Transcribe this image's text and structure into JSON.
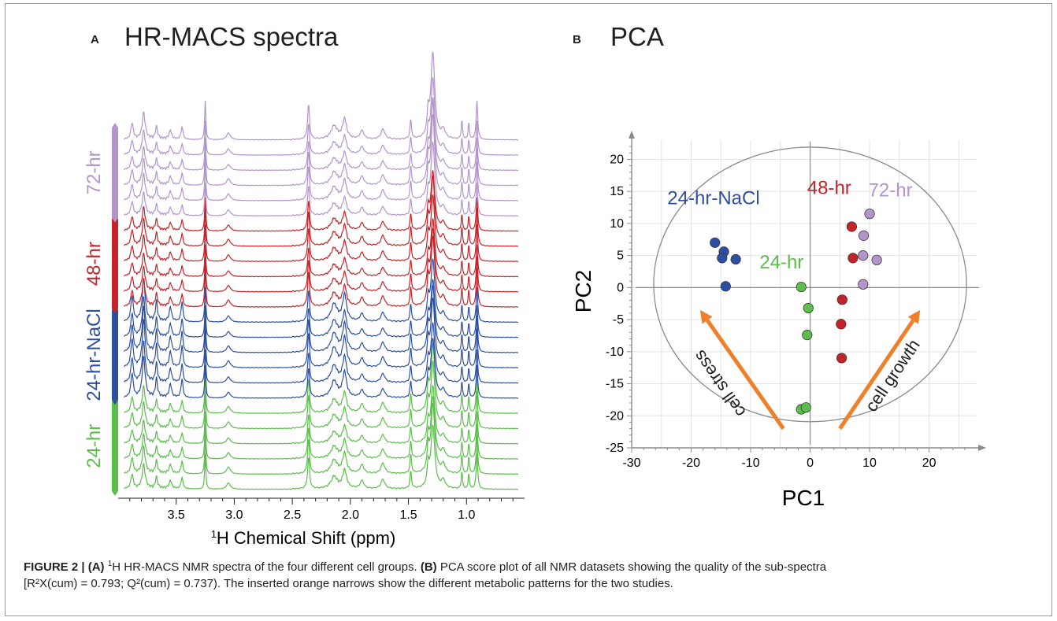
{
  "panel_a": {
    "letter": "A",
    "title": "HR-MACS spectra"
  },
  "panel_b": {
    "letter": "B",
    "title": "PCA"
  },
  "caption": {
    "fig_label": "FIGURE 2 |",
    "part_a_label": "(A)",
    "part_a_sup": "1",
    "part_a_text": "H HR-MACS NMR spectra of the four different cell groups.",
    "part_b_label": "(B)",
    "part_b_text": "PCA score plot of all NMR datasets showing the quality of the sub-spectra",
    "line2": "[R²X(cum) = 0.793; Q²(cum) = 0.737). The inserted orange narrows show the different metabolic patterns for the two studies."
  },
  "chart_data": [
    {
      "type": "line",
      "title": "HR-MACS spectra",
      "xlabel_sup": "1",
      "xlabel": "H Chemical Shift (ppm)",
      "x_ticks": [
        "3.5",
        "3.0",
        "2.5",
        "2.0",
        "1.5",
        "1.0"
      ],
      "xlim": [
        4.0,
        0.5
      ],
      "peaks_ppm": [
        3.88,
        3.78,
        3.67,
        3.55,
        3.45,
        3.25,
        3.05,
        2.36,
        2.14,
        2.05,
        1.9,
        1.72,
        1.48,
        1.33,
        1.29,
        1.2,
        1.04,
        0.98,
        0.91
      ],
      "groups": [
        {
          "name": "24-hr",
          "color": "#5cbd4c",
          "n_spectra": 6
        },
        {
          "name": "24-hr-NaCl",
          "color": "#2d4fa0",
          "n_spectra": 6
        },
        {
          "name": "48-hr",
          "color": "#c42329",
          "n_spectra": 6
        },
        {
          "name": "72-hr",
          "color": "#b395c9",
          "n_spectra": 6
        }
      ]
    },
    {
      "type": "scatter",
      "title": "PCA",
      "xlabel": "PC1",
      "ylabel": "PC2",
      "xlim": [
        -30,
        28
      ],
      "ylim": [
        -25,
        23
      ],
      "x_ticks": [
        -30,
        -20,
        -10,
        0,
        10,
        20
      ],
      "y_ticks": [
        20,
        15,
        10,
        5,
        0,
        -5,
        -10,
        -15,
        -20,
        -25
      ],
      "grid": true,
      "series": [
        {
          "name": "24-hr-NaCl",
          "color": "#2d4fa0",
          "points": [
            [
              -16,
              7
            ],
            [
              -14.5,
              5.6
            ],
            [
              -14.8,
              4.6
            ],
            [
              -12.5,
              4.4
            ],
            [
              -14.2,
              0.2
            ]
          ]
        },
        {
          "name": "24-hr",
          "color": "#5cbd4c",
          "points": [
            [
              -1.5,
              0.1
            ],
            [
              -0.3,
              -3.2
            ],
            [
              -0.5,
              -7.4
            ],
            [
              -1.5,
              -19.0
            ],
            [
              -0.7,
              -18.7
            ]
          ]
        },
        {
          "name": "48-hr",
          "color": "#c42329",
          "points": [
            [
              7,
              9.5
            ],
            [
              7.2,
              4.6
            ],
            [
              5.4,
              -1.9
            ],
            [
              5.2,
              -5.7
            ],
            [
              5.3,
              -11.0
            ]
          ]
        },
        {
          "name": "72-hr",
          "color": "#b395c9",
          "points": [
            [
              10,
              11.5
            ],
            [
              9,
              8.1
            ],
            [
              8.9,
              5.0
            ],
            [
              11.2,
              4.3
            ],
            [
              8.9,
              0.5
            ]
          ]
        }
      ],
      "annotations": [
        {
          "text": "cell stress",
          "color": "#f07f2a",
          "from": [
            -4.5,
            -22
          ],
          "to": [
            -18.5,
            -3.5
          ]
        },
        {
          "text": "cell growth",
          "color": "#f07f2a",
          "from": [
            5,
            -22
          ],
          "to": [
            18.5,
            -3.5
          ]
        }
      ]
    }
  ]
}
